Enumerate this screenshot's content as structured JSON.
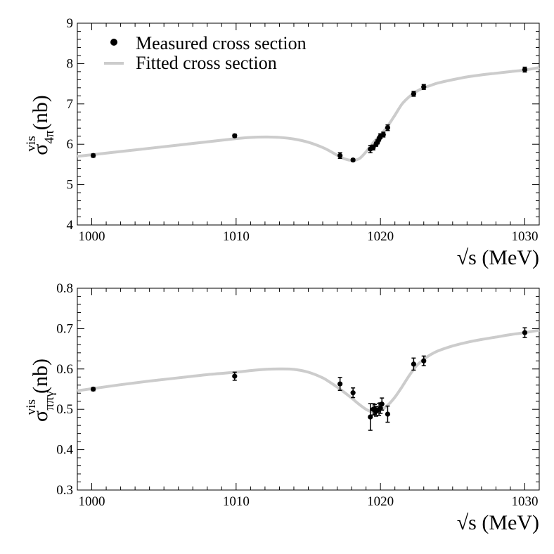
{
  "chart_data": [
    {
      "type": "scatter",
      "xlabel": "√s (MeV)",
      "ylabel": {
        "base": "σ",
        "sub": "4π",
        "sup": "vis",
        "unit": "(nb)"
      },
      "xlim": [
        999,
        1031
      ],
      "ylim": [
        4,
        9
      ],
      "x_ticks": [
        1000,
        1010,
        1020,
        1030
      ],
      "y_ticks": [
        4,
        5,
        6,
        7,
        8,
        9
      ],
      "y_tick_labels": [
        "4",
        "5",
        "6",
        "7",
        "8",
        "9"
      ],
      "x_tick_labels": [
        "1000",
        "1010",
        "1020",
        "1030"
      ],
      "legend": {
        "placement": "top-left",
        "entries": [
          "Measured cross section",
          "Fitted cross section"
        ]
      },
      "colors": {
        "points": "#000000",
        "fit": "#cccccc"
      },
      "series": [
        {
          "name": "Measured cross section",
          "kind": "points-with-errors",
          "points": [
            {
              "x": 1000.1,
              "y": 5.72,
              "err": 0.04
            },
            {
              "x": 1009.9,
              "y": 6.21,
              "err": 0.04
            },
            {
              "x": 1017.2,
              "y": 5.72,
              "err": 0.07
            },
            {
              "x": 1018.1,
              "y": 5.61,
              "err": 0.03
            },
            {
              "x": 1019.3,
              "y": 5.88,
              "err": 0.09
            },
            {
              "x": 1019.5,
              "y": 5.92,
              "err": 0.06
            },
            {
              "x": 1019.7,
              "y": 6.0,
              "err": 0.05
            },
            {
              "x": 1019.8,
              "y": 6.06,
              "err": 0.05
            },
            {
              "x": 1019.9,
              "y": 6.13,
              "err": 0.05
            },
            {
              "x": 1020.0,
              "y": 6.2,
              "err": 0.06
            },
            {
              "x": 1020.2,
              "y": 6.24,
              "err": 0.06
            },
            {
              "x": 1020.5,
              "y": 6.41,
              "err": 0.07
            },
            {
              "x": 1022.3,
              "y": 7.25,
              "err": 0.06
            },
            {
              "x": 1023.0,
              "y": 7.42,
              "err": 0.06
            },
            {
              "x": 1030.0,
              "y": 7.85,
              "err": 0.06
            }
          ]
        },
        {
          "name": "Fitted cross section",
          "kind": "curve",
          "x": [
            999,
            1000,
            1002,
            1004,
            1006,
            1008,
            1010,
            1011,
            1012,
            1013,
            1014,
            1015,
            1016,
            1016.5,
            1017,
            1017.5,
            1018,
            1018.3,
            1018.6,
            1019,
            1019.3,
            1019.6,
            1020,
            1020.5,
            1021,
            1021.5,
            1022,
            1022.5,
            1023,
            1023.5,
            1024,
            1025,
            1026,
            1027,
            1028,
            1029,
            1030,
            1031
          ],
          "values": [
            5.7,
            5.74,
            5.82,
            5.9,
            5.98,
            6.06,
            6.14,
            6.17,
            6.18,
            6.17,
            6.13,
            6.05,
            5.92,
            5.83,
            5.73,
            5.64,
            5.6,
            5.61,
            5.66,
            5.81,
            5.95,
            6.08,
            6.23,
            6.45,
            6.72,
            7.0,
            7.18,
            7.31,
            7.4,
            7.46,
            7.52,
            7.6,
            7.67,
            7.72,
            7.76,
            7.8,
            7.84,
            7.9
          ]
        }
      ]
    },
    {
      "type": "scatter",
      "xlabel": "√s (MeV)",
      "ylabel": {
        "base": "σ",
        "sub": "ππγ",
        "sup": "vis",
        "unit": "(nb)"
      },
      "xlim": [
        999,
        1031
      ],
      "ylim": [
        0.3,
        0.8
      ],
      "x_ticks": [
        1000,
        1010,
        1020,
        1030
      ],
      "y_ticks": [
        0.3,
        0.4,
        0.5,
        0.6,
        0.7,
        0.8
      ],
      "y_tick_labels": [
        "0.3",
        "0.4",
        "0.5",
        "0.6",
        "0.7",
        "0.8"
      ],
      "x_tick_labels": [
        "1000",
        "1010",
        "1020",
        "1030"
      ],
      "colors": {
        "points": "#000000",
        "fit": "#cccccc"
      },
      "series": [
        {
          "kind": "points-with-errors",
          "points": [
            {
              "x": 1000.1,
              "y": 0.55,
              "err": 0.004
            },
            {
              "x": 1009.9,
              "y": 0.582,
              "err": 0.01
            },
            {
              "x": 1017.2,
              "y": 0.563,
              "err": 0.016
            },
            {
              "x": 1018.1,
              "y": 0.541,
              "err": 0.012
            },
            {
              "x": 1019.3,
              "y": 0.481,
              "err": 0.033
            },
            {
              "x": 1019.5,
              "y": 0.5,
              "err": 0.014
            },
            {
              "x": 1019.6,
              "y": 0.5,
              "err": 0.012
            },
            {
              "x": 1019.7,
              "y": 0.495,
              "err": 0.012
            },
            {
              "x": 1019.9,
              "y": 0.5,
              "err": 0.015
            },
            {
              "x": 1020.0,
              "y": 0.503,
              "err": 0.013
            },
            {
              "x": 1020.1,
              "y": 0.513,
              "err": 0.015
            },
            {
              "x": 1020.5,
              "y": 0.488,
              "err": 0.02
            },
            {
              "x": 1022.3,
              "y": 0.612,
              "err": 0.015
            },
            {
              "x": 1023.0,
              "y": 0.62,
              "err": 0.012
            },
            {
              "x": 1030.0,
              "y": 0.69,
              "err": 0.012
            }
          ]
        },
        {
          "kind": "curve",
          "x": [
            999,
            1000,
            1002,
            1004,
            1006,
            1008,
            1010,
            1011,
            1012,
            1013,
            1014,
            1015,
            1016,
            1016.5,
            1017,
            1017.5,
            1018,
            1018.5,
            1019,
            1019.5,
            1020,
            1020.5,
            1021,
            1021.5,
            1022,
            1022.5,
            1023,
            1023.5,
            1024,
            1025,
            1026,
            1027,
            1028,
            1029,
            1030,
            1031
          ],
          "values": [
            0.546,
            0.551,
            0.561,
            0.57,
            0.578,
            0.586,
            0.592,
            0.596,
            0.599,
            0.6,
            0.599,
            0.592,
            0.578,
            0.567,
            0.555,
            0.542,
            0.528,
            0.513,
            0.5,
            0.493,
            0.497,
            0.51,
            0.53,
            0.556,
            0.584,
            0.608,
            0.624,
            0.636,
            0.645,
            0.657,
            0.666,
            0.673,
            0.679,
            0.685,
            0.69,
            0.696
          ]
        }
      ]
    }
  ]
}
